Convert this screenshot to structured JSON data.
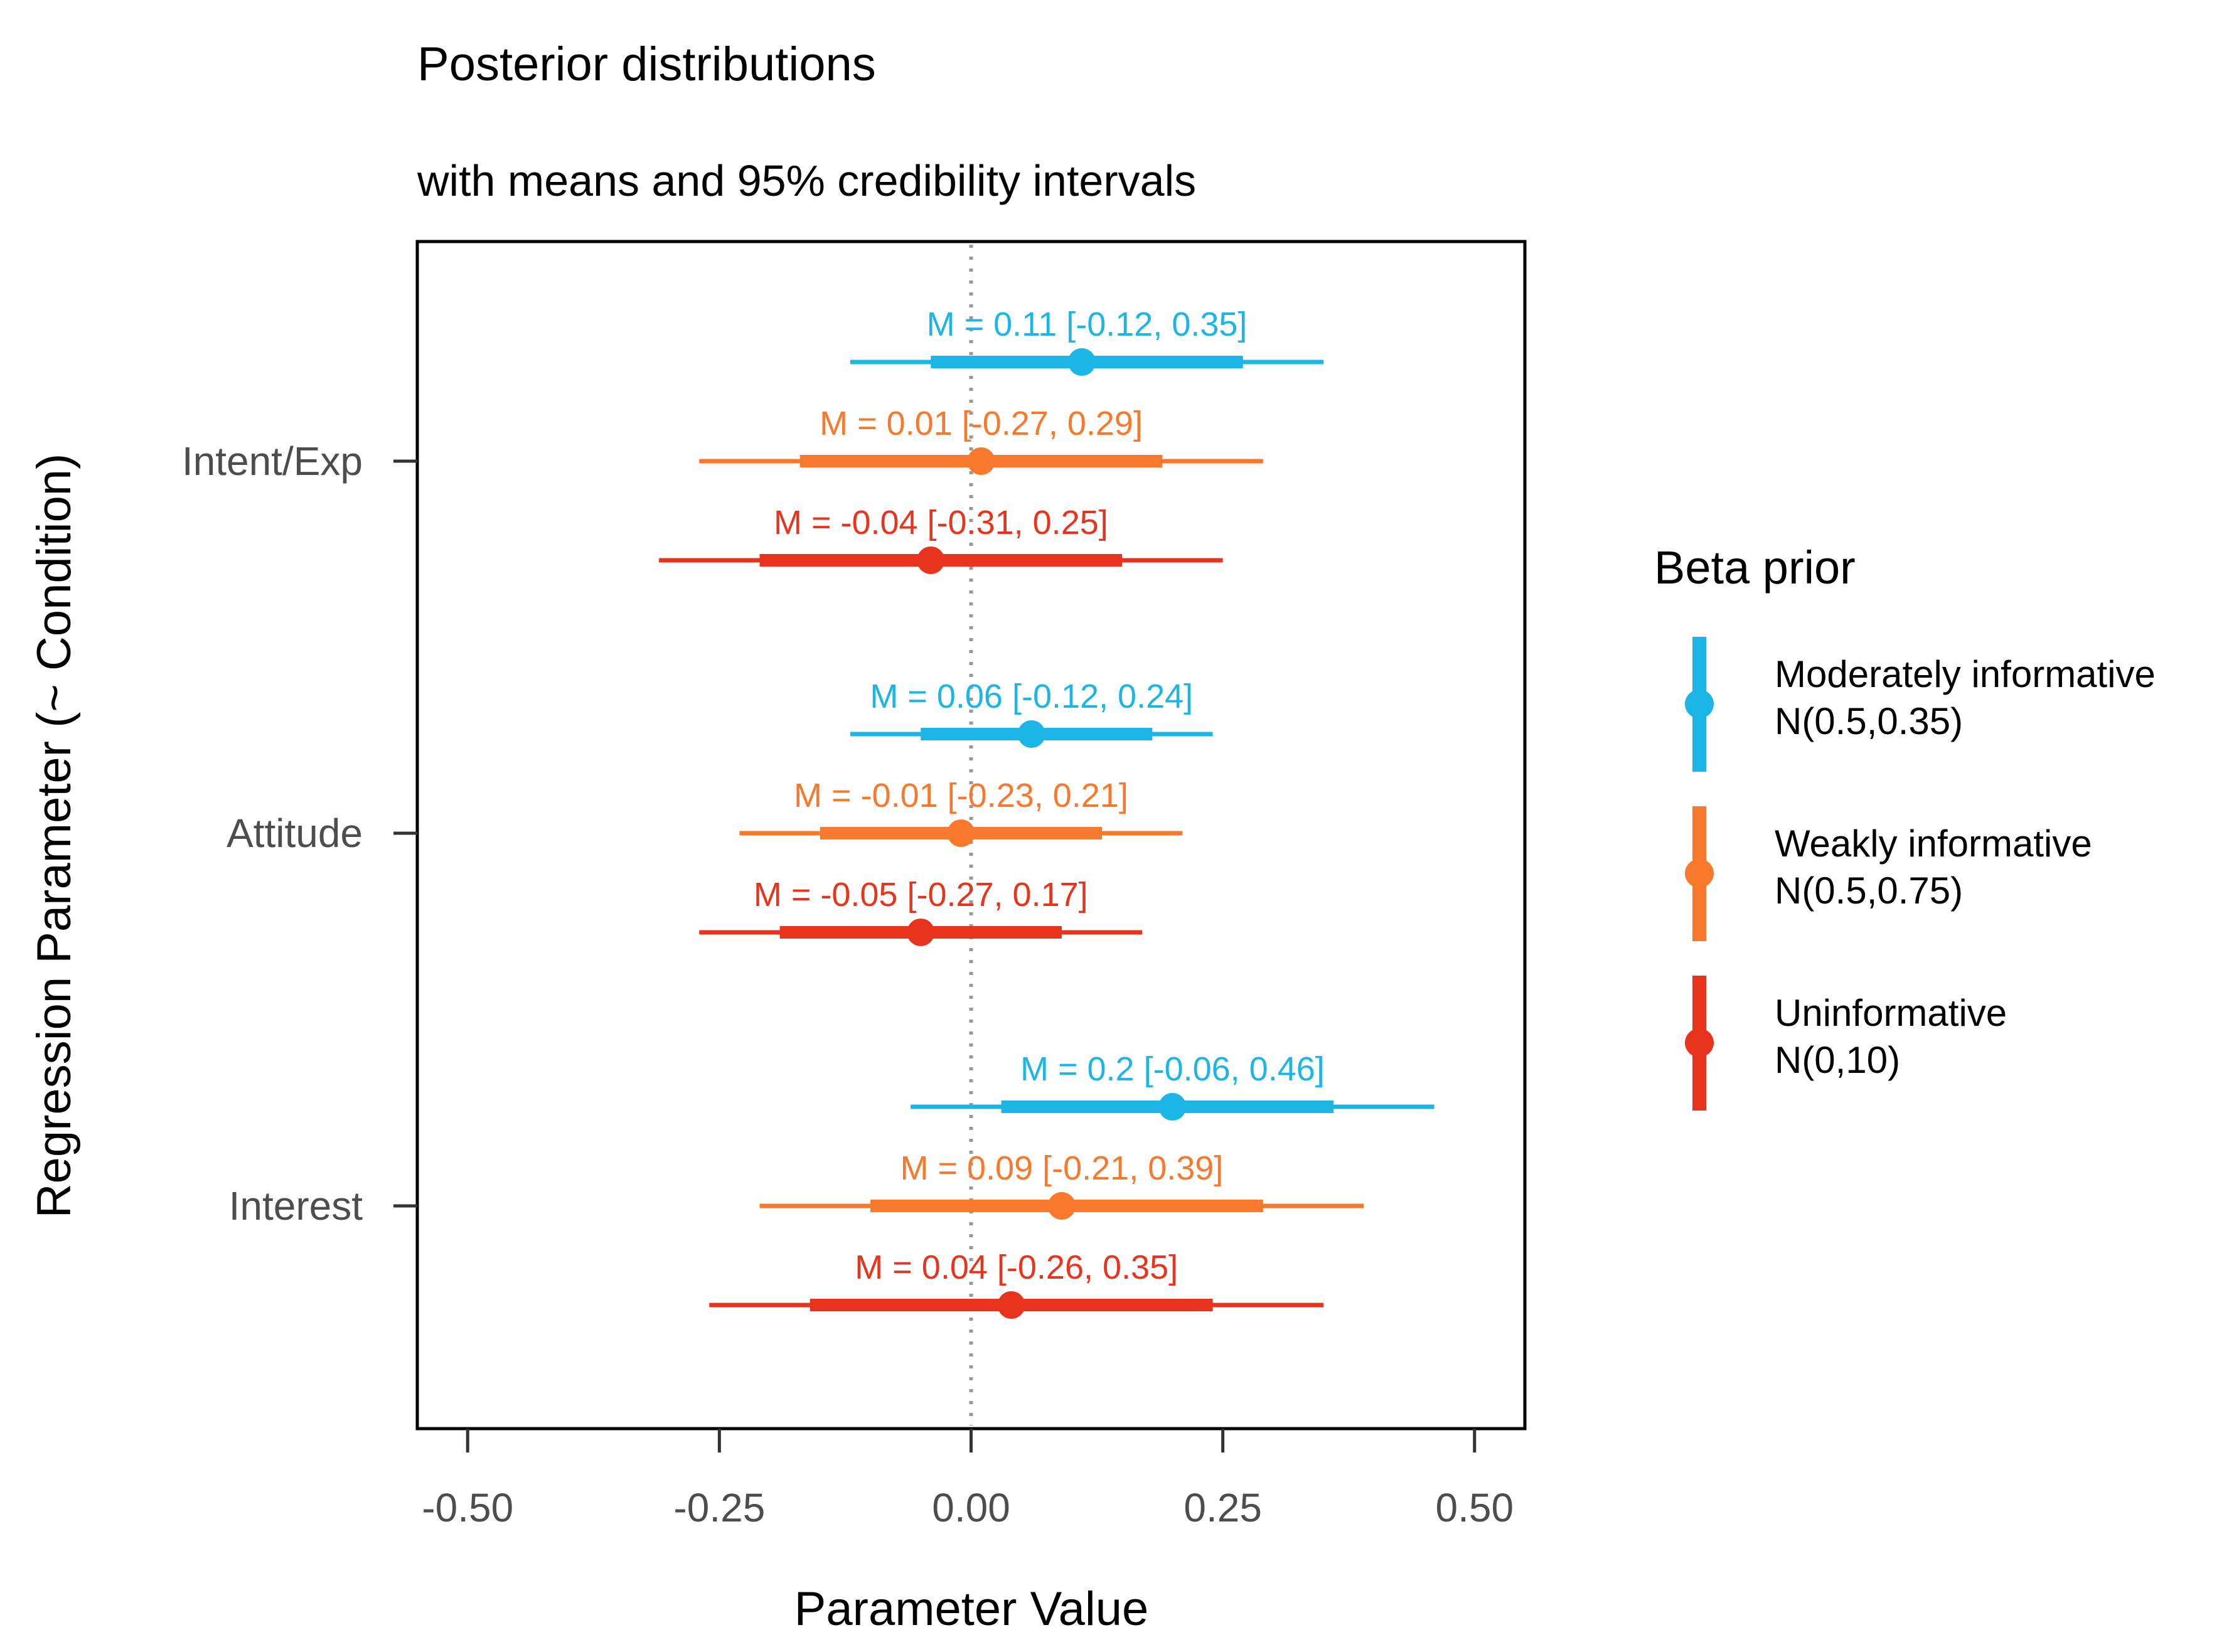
{
  "chart_data": {
    "type": "pointinterval",
    "title": "Posterior distributions",
    "subtitle": "with means and 95% credibility intervals",
    "xlabel": "Parameter Value",
    "ylabel": "Regression Parameter (~ Condition)",
    "xlim": [
      -0.55,
      0.55
    ],
    "x_ticks": [
      "-0.50",
      "-0.25",
      "0.00",
      "0.25",
      "0.50"
    ],
    "x_tick_values": [
      -0.5,
      -0.25,
      0.0,
      0.25,
      0.5
    ],
    "reference_line": 0.0,
    "categories": [
      "Intent/Exp",
      "Attitude",
      "Interest"
    ],
    "legend": {
      "title": "Beta prior",
      "entries": [
        {
          "name": "Moderately informative",
          "sub": "N(0.5,0.35)",
          "color": "#1bb6e6"
        },
        {
          "name": "Weakly informative",
          "sub": "N(0.5,0.75)",
          "color": "#f8782c"
        },
        {
          "name": "Uninformative",
          "sub": "N(0,10)",
          "color": "#e8341c"
        }
      ]
    },
    "series": [
      {
        "name": "Moderately informative",
        "points": [
          {
            "category": "Intent/Exp",
            "mean": 0.11,
            "lo95": -0.12,
            "hi95": 0.35,
            "lo_inner": -0.04,
            "hi_inner": 0.27,
            "label": "M = 0.11 [-0.12, 0.35]"
          },
          {
            "category": "Attitude",
            "mean": 0.06,
            "lo95": -0.12,
            "hi95": 0.24,
            "lo_inner": -0.05,
            "hi_inner": 0.18,
            "label": "M = 0.06 [-0.12, 0.24]"
          },
          {
            "category": "Interest",
            "mean": 0.2,
            "lo95": -0.06,
            "hi95": 0.46,
            "lo_inner": 0.03,
            "hi_inner": 0.36,
            "label": "M = 0.2 [-0.06, 0.46]"
          }
        ]
      },
      {
        "name": "Weakly informative",
        "points": [
          {
            "category": "Intent/Exp",
            "mean": 0.01,
            "lo95": -0.27,
            "hi95": 0.29,
            "lo_inner": -0.17,
            "hi_inner": 0.19,
            "label": "M = 0.01 [-0.27, 0.29]"
          },
          {
            "category": "Attitude",
            "mean": -0.01,
            "lo95": -0.23,
            "hi95": 0.21,
            "lo_inner": -0.15,
            "hi_inner": 0.13,
            "label": "M = -0.01 [-0.23, 0.21]"
          },
          {
            "category": "Interest",
            "mean": 0.09,
            "lo95": -0.21,
            "hi95": 0.39,
            "lo_inner": -0.1,
            "hi_inner": 0.29,
            "label": "M = 0.09 [-0.21, 0.39]"
          }
        ]
      },
      {
        "name": "Uninformative",
        "points": [
          {
            "category": "Intent/Exp",
            "mean": -0.04,
            "lo95": -0.31,
            "hi95": 0.25,
            "lo_inner": -0.21,
            "hi_inner": 0.15,
            "label": "M = -0.04 [-0.31, 0.25]"
          },
          {
            "category": "Attitude",
            "mean": -0.05,
            "lo95": -0.27,
            "hi95": 0.17,
            "lo_inner": -0.19,
            "hi_inner": 0.09,
            "label": "M = -0.05 [-0.27, 0.17]"
          },
          {
            "category": "Interest",
            "mean": 0.04,
            "lo95": -0.26,
            "hi95": 0.35,
            "lo_inner": -0.16,
            "hi_inner": 0.24,
            "label": "M = 0.04 [-0.26, 0.35]"
          }
        ]
      }
    ]
  }
}
